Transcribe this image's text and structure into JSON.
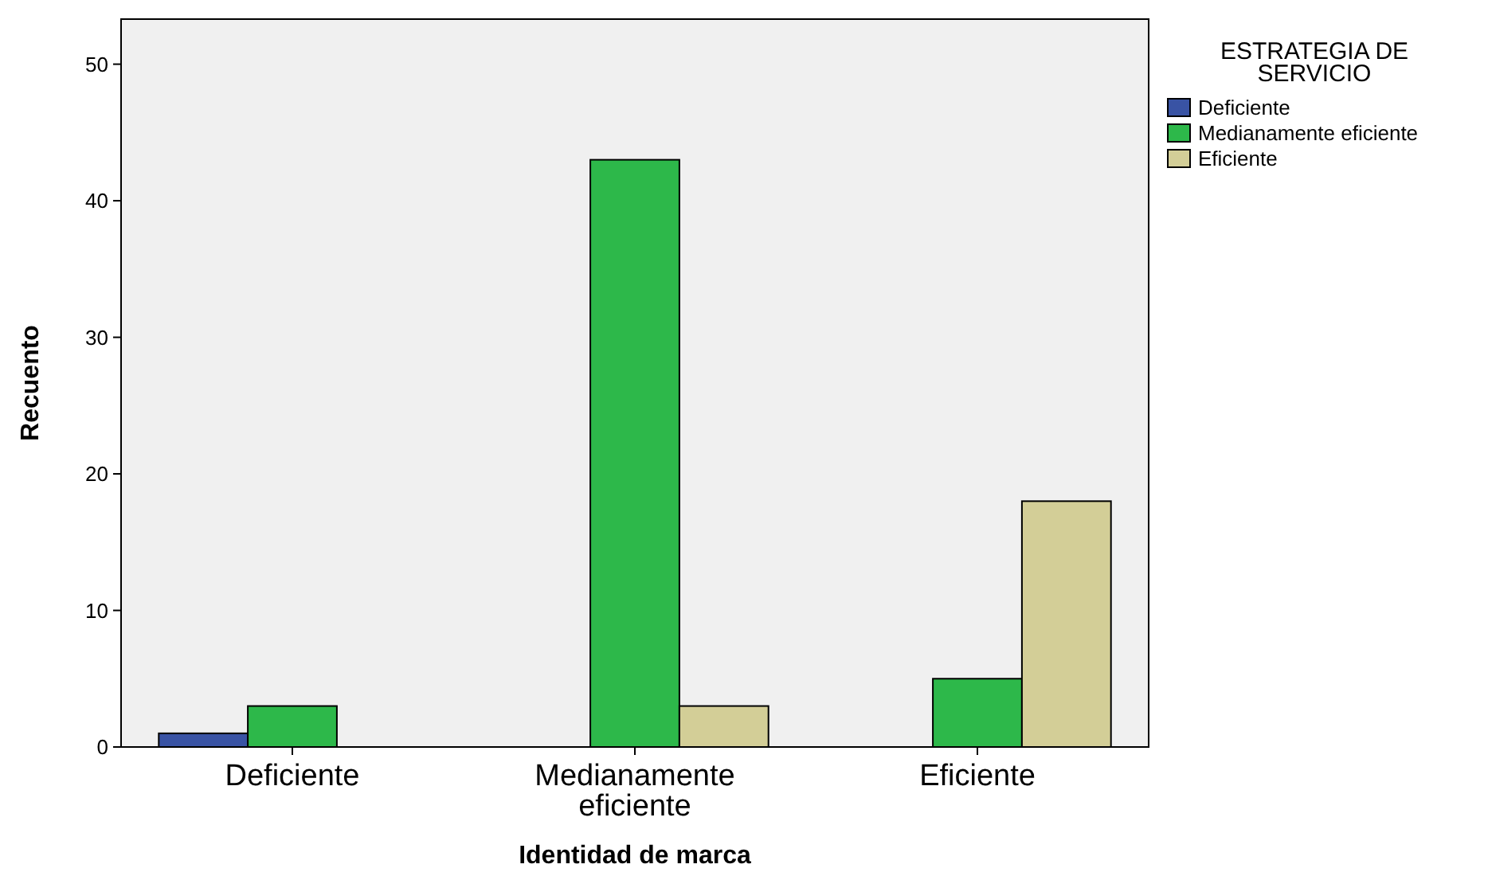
{
  "chart_data": {
    "type": "bar",
    "xlabel": "Identidad de marca",
    "ylabel": "Recuento",
    "legend_title": "ESTRATEGIA DE SERVICIO",
    "categories": [
      "Deficiente",
      "Medianamente eficiente",
      "Eficiente"
    ],
    "series": [
      {
        "name": "Deficiente",
        "color": "#3953a4",
        "values": [
          1,
          null,
          null
        ]
      },
      {
        "name": "Medianamente eficiente",
        "color": "#2db84a",
        "values": [
          3,
          43,
          5
        ]
      },
      {
        "name": "Eficiente",
        "color": "#d3ce97",
        "values": [
          null,
          3,
          18
        ]
      }
    ],
    "ylim": [
      0,
      53.3
    ],
    "yticks": [
      0,
      10,
      20,
      30,
      40,
      50
    ],
    "grid": false,
    "legend": "right"
  }
}
